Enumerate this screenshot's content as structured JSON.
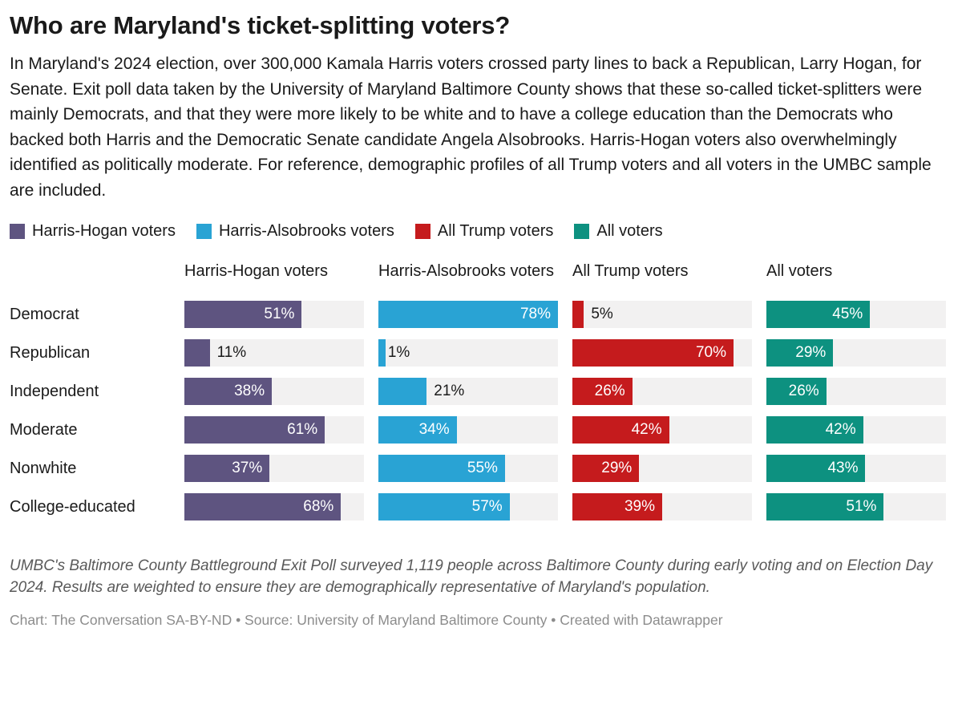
{
  "header": {
    "title": "Who are Maryland's ticket-splitting voters?",
    "description": "In Maryland's 2024 election, over 300,000 Kamala Harris voters crossed party lines to back a Republican, Larry Hogan, for Senate. Exit poll data taken by the University of Maryland Baltimore County shows that these so-called ticket-splitters were mainly Democrats, and that they were more likely to be white and to have a college education than the Democrats who backed both Harris and the Democratic Senate candidate Angela Alsobrooks. Harris-Hogan voters also overwhelmingly identified as politically moderate. For reference, demographic profiles of all Trump voters and all voters in the UMBC sample are included."
  },
  "legend": [
    {
      "label": "Harris-Hogan voters",
      "color": "#5e5480"
    },
    {
      "label": "Harris-Alsobrooks voters",
      "color": "#29a3d4"
    },
    {
      "label": "All Trump voters",
      "color": "#c51b1d"
    },
    {
      "label": "All voters",
      "color": "#0d9180"
    }
  ],
  "chart_data": {
    "type": "bar",
    "orientation": "horizontal",
    "title": "Who are Maryland's ticket-splitting voters?",
    "categories": [
      "Democrat",
      "Republican",
      "Independent",
      "Moderate",
      "Nonwhite",
      "College-educated"
    ],
    "series": [
      {
        "name": "Harris-Hogan voters",
        "color": "#5e5480",
        "values": [
          51,
          11,
          38,
          61,
          37,
          68
        ]
      },
      {
        "name": "Harris-Alsobrooks voters",
        "color": "#29a3d4",
        "values": [
          78,
          1,
          21,
          34,
          55,
          57
        ]
      },
      {
        "name": "All Trump voters",
        "color": "#c51b1d",
        "values": [
          5,
          70,
          26,
          42,
          29,
          39
        ]
      },
      {
        "name": "All voters",
        "color": "#0d9180",
        "values": [
          45,
          29,
          26,
          42,
          43,
          51
        ]
      }
    ],
    "value_suffix": "%",
    "xmax": 78,
    "track_color": "#f2f1f1",
    "inside_label_threshold": 0.32,
    "grid": false,
    "legend_position": "top"
  },
  "footnote": "UMBC's Baltimore County Battleground Exit Poll surveyed 1,119 people across Baltimore County during early voting and on Election Day 2024. Results are weighted to ensure they are demographically representative of Maryland's population.",
  "footer": "Chart: The Conversation SA-BY-ND • Source: University of Maryland Baltimore County • Created with Datawrapper"
}
